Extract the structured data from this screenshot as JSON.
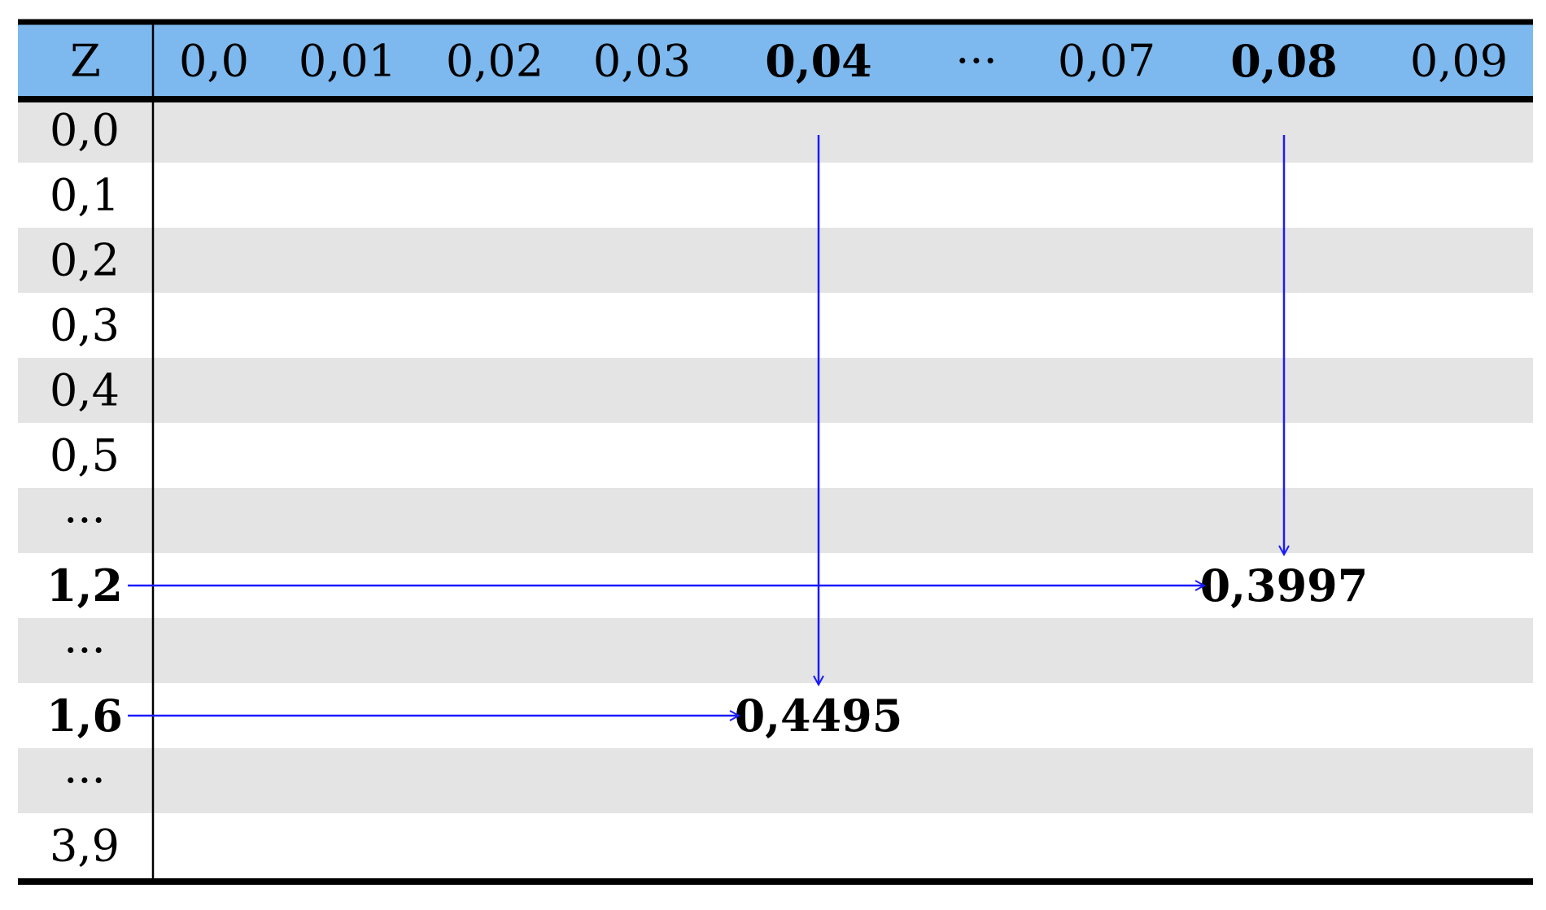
{
  "colors": {
    "header_bg": "#7db9ee",
    "stripe_bg": "#e4e4e4",
    "plain_bg": "#ffffff",
    "rule": "#000000",
    "arrow": "#1a1aff"
  },
  "table": {
    "corner_label": "Z",
    "columns": [
      {
        "label": "0,0",
        "bold": false
      },
      {
        "label": "0,01",
        "bold": false
      },
      {
        "label": "0,02",
        "bold": false
      },
      {
        "label": "0,03",
        "bold": false
      },
      {
        "label": "0,04",
        "bold": true
      },
      {
        "label": "···",
        "bold": false
      },
      {
        "label": "0,07",
        "bold": false
      },
      {
        "label": "0,08",
        "bold": true
      },
      {
        "label": "0,09",
        "bold": false
      }
    ],
    "rows": [
      {
        "label": "0,0",
        "bold": false
      },
      {
        "label": "0,1",
        "bold": false
      },
      {
        "label": "0,2",
        "bold": false
      },
      {
        "label": "0,3",
        "bold": false
      },
      {
        "label": "0,4",
        "bold": false
      },
      {
        "label": "0,5",
        "bold": false
      },
      {
        "label": "···",
        "bold": false
      },
      {
        "label": "1,2",
        "bold": true
      },
      {
        "label": "···",
        "bold": false
      },
      {
        "label": "1,6",
        "bold": true
      },
      {
        "label": "···",
        "bold": false
      },
      {
        "label": "3,9",
        "bold": false
      }
    ],
    "highlighted_cells": [
      {
        "row": "1,2",
        "column": "0,08",
        "value": "0,3997"
      },
      {
        "row": "1,6",
        "column": "0,04",
        "value": "0,4495"
      }
    ]
  }
}
